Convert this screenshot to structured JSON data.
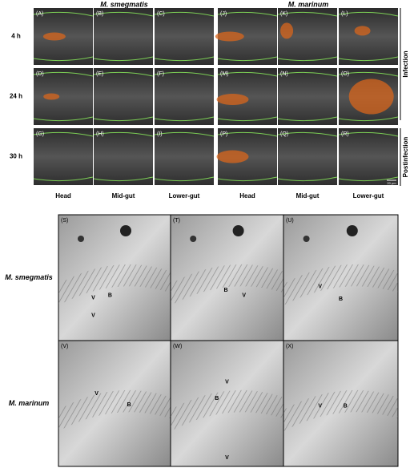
{
  "header": {
    "columns": [
      "M. smegmatis",
      "M. marinum"
    ]
  },
  "top": {
    "rows": [
      "4 h",
      "24 h",
      "30 h"
    ],
    "panels": [
      [
        "(A)",
        "(B)",
        "(C)",
        "(J)",
        "(K)",
        "(L)"
      ],
      [
        "(D)",
        "(E)",
        "(F)",
        "(M)",
        "(N)",
        "(O)"
      ],
      [
        "(G)",
        "(H)",
        "(I)",
        "(P)",
        "(Q)",
        "(R)"
      ]
    ],
    "column_labels": [
      "Head",
      "Mid-gut",
      "Lower-gut",
      "Head",
      "Mid-gut",
      "Lower-gut"
    ],
    "side": [
      "Infection",
      "Postinfection"
    ],
    "scale": "20 μm"
  },
  "bottom": {
    "rows": [
      "M. smegmatis",
      "M. marinum"
    ],
    "panels": [
      [
        {
          "label": "(S)",
          "marks": [
            "V",
            "B",
            "V"
          ]
        },
        {
          "label": "(T)",
          "marks": [
            "B",
            "V"
          ]
        },
        {
          "label": "(U)",
          "marks": [
            "V",
            "B"
          ]
        }
      ],
      [
        {
          "label": "(V)",
          "marks": [
            "V",
            "B"
          ]
        },
        {
          "label": "(W)",
          "marks": [
            "V",
            "B",
            "V"
          ]
        },
        {
          "label": "(X)",
          "marks": [
            "V",
            "B"
          ]
        }
      ]
    ]
  }
}
